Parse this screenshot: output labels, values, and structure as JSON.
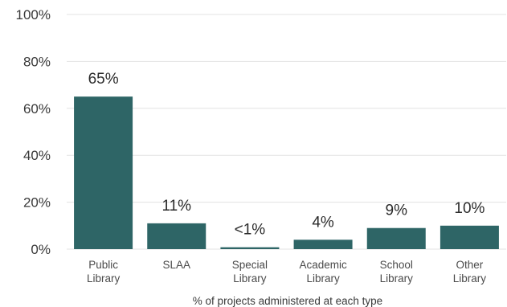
{
  "chart_data": {
    "type": "bar",
    "categories": [
      [
        "Public",
        "Library"
      ],
      [
        "SLAA"
      ],
      [
        "Special",
        "Library"
      ],
      [
        "Academic",
        "Library"
      ],
      [
        "School",
        "Library"
      ],
      [
        "Other",
        "Library"
      ]
    ],
    "values": [
      65,
      11,
      0.8,
      4,
      9,
      10
    ],
    "data_labels": [
      "65%",
      "11%",
      "<1%",
      "4%",
      "9%",
      "10%"
    ],
    "y_ticks": [
      {
        "value": 0,
        "label": "0%"
      },
      {
        "value": 20,
        "label": "20%"
      },
      {
        "value": 40,
        "label": "40%"
      },
      {
        "value": 60,
        "label": "60%"
      },
      {
        "value": 80,
        "label": "80%"
      },
      {
        "value": 100,
        "label": "100%"
      }
    ],
    "ylim": [
      0,
      100
    ],
    "xlabel": "% of projects administered at each type",
    "ylabel": "",
    "title": "",
    "grid": true,
    "bar_color": "#2e6566"
  }
}
